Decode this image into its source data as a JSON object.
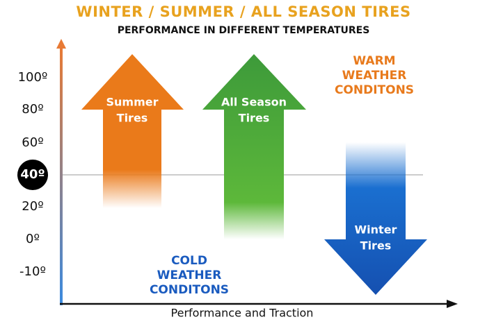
{
  "title": "WINTER / SUMMER / ALL SEASON TIRES",
  "subtitle": "PERFORMANCE IN DIFFERENT TEMPERATURES",
  "y_axis": {
    "labels": [
      "100º",
      "80º",
      "60º",
      "40º",
      "20º",
      "0º",
      "-10º"
    ]
  },
  "x_axis": {
    "label": "Performance and Traction"
  },
  "arrows": [
    {
      "lines": [
        "Summer",
        "Tires"
      ]
    },
    {
      "lines": [
        "All Season",
        "Tires"
      ]
    },
    {
      "lines": [
        "Winter",
        "Tires"
      ]
    }
  ],
  "annotations": {
    "warm": [
      "WARM",
      "WEATHER",
      "CONDITONS"
    ],
    "cold": [
      "COLD",
      "WEATHER",
      "CONDITONS"
    ]
  }
}
